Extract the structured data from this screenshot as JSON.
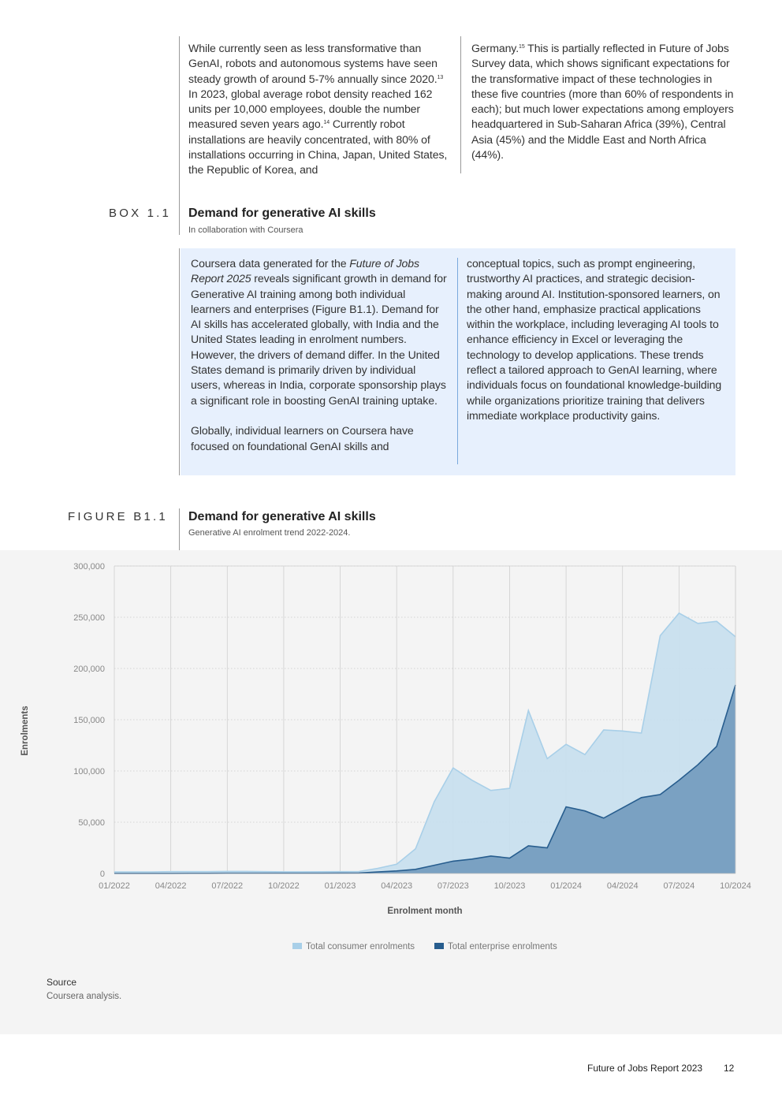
{
  "intro": {
    "col1_segments": [
      {
        "text": "While currently seen as less transformative than GenAI, robots and autonomous systems have seen steady growth of around 5-7% annually since 2020."
      },
      {
        "sup": "13"
      },
      {
        "text": " In 2023, global average robot density reached 162 units per 10,000 employees, double the number measured seven years ago."
      },
      {
        "sup": "14"
      },
      {
        "text": " Currently robot installations are heavily concentrated, with 80% of installations occurring in China, Japan, United States, the Republic of Korea, and"
      }
    ],
    "col2_segments": [
      {
        "text": "Germany."
      },
      {
        "sup": "15"
      },
      {
        "text": " This is partially reflected in Future of Jobs Survey data, which shows significant expectations for the transformative impact of these technologies in these five countries (more than 60% of respondents in each); but much lower expectations among employers headquartered in Sub-Saharan Africa (39%), Central Asia (45%) and the Middle East and North Africa (44%)."
      }
    ]
  },
  "box": {
    "label": "BOX 1.1",
    "title": "Demand for generative AI skills",
    "subtitle": "In collaboration with Coursera",
    "col1_p1_segments": [
      {
        "text": "Coursera data generated for the "
      },
      {
        "italic": "Future of Jobs Report 2025"
      },
      {
        "text": " reveals significant growth in demand for Generative AI training among both individual learners and enterprises (Figure B1.1). Demand for AI skills has accelerated globally, with India and the United States leading in enrolment numbers. However, the drivers of demand differ. In the United States demand is primarily driven by individual users, whereas in India, corporate sponsorship plays a significant role in boosting GenAI training uptake."
      }
    ],
    "col1_p2": "Globally, individual learners on Coursera have focused on foundational GenAI skills and",
    "col2_p1": "conceptual topics, such as prompt engineering, trustworthy AI practices, and strategic decision-making around AI. Institution-sponsored learners, on the other hand, emphasize practical applications within the workplace, including leveraging AI tools to enhance efficiency in Excel or leveraging the technology to develop applications. These trends reflect a tailored approach to GenAI learning, where individuals focus on foundational knowledge-building while organizations prioritize training that delivers immediate workplace productivity gains."
  },
  "figure": {
    "label": "FIGURE B1.1",
    "title": "Demand for generative AI skills",
    "subtitle": "Generative AI enrolment trend 2022-2024."
  },
  "chart_data": {
    "type": "area",
    "xlabel": "Enrolment month",
    "ylabel": "Enrolments",
    "ylim": [
      0,
      300000
    ],
    "y_ticks": [
      "0",
      "50,000",
      "100,000",
      "150,000",
      "200,000",
      "250,000",
      "300,000"
    ],
    "x_tick_labels": [
      "01/2022",
      "04/2022",
      "07/2022",
      "10/2022",
      "01/2023",
      "04/2023",
      "07/2023",
      "10/2023",
      "01/2024",
      "04/2024",
      "07/2024",
      "10/2024"
    ],
    "x": [
      "01/2022",
      "02/2022",
      "03/2022",
      "04/2022",
      "05/2022",
      "06/2022",
      "07/2022",
      "08/2022",
      "09/2022",
      "10/2022",
      "11/2022",
      "12/2022",
      "01/2023",
      "02/2023",
      "03/2023",
      "04/2023",
      "05/2023",
      "06/2023",
      "07/2023",
      "08/2023",
      "09/2023",
      "10/2023",
      "11/2023",
      "12/2023",
      "01/2024",
      "02/2024",
      "03/2024",
      "04/2024",
      "05/2024",
      "06/2024",
      "07/2024",
      "08/2024",
      "09/2024",
      "10/2024"
    ],
    "grid": "vertical solid, horizontal dotted",
    "legend_position": "bottom-center",
    "series": [
      {
        "name": "Total consumer enrolments",
        "color": "#a8cfe8",
        "fill": "#c8dfee",
        "values": [
          1500,
          1500,
          1500,
          1800,
          1800,
          1800,
          2000,
          2000,
          1800,
          1600,
          1600,
          1700,
          1800,
          1900,
          5000,
          9000,
          24000,
          70000,
          103000,
          91000,
          81000,
          83000,
          159000,
          112000,
          126000,
          116000,
          140000,
          139000,
          137000,
          232000,
          254000,
          244000,
          246000,
          231000
        ]
      },
      {
        "name": "Total enterprise enrolments",
        "color": "#275d8e",
        "fill": "#7aa1c2",
        "values": [
          100,
          100,
          100,
          100,
          150,
          150,
          200,
          200,
          200,
          200,
          250,
          250,
          300,
          500,
          1500,
          2500,
          4000,
          8000,
          12000,
          14000,
          17000,
          15000,
          27000,
          25000,
          65000,
          61000,
          54000,
          64000,
          74000,
          77000,
          91000,
          106000,
          124000,
          184000
        ]
      }
    ]
  },
  "source": {
    "heading": "Source",
    "text": "Coursera analysis."
  },
  "footer": {
    "title": "Future of Jobs Report 2023",
    "page": "12"
  }
}
